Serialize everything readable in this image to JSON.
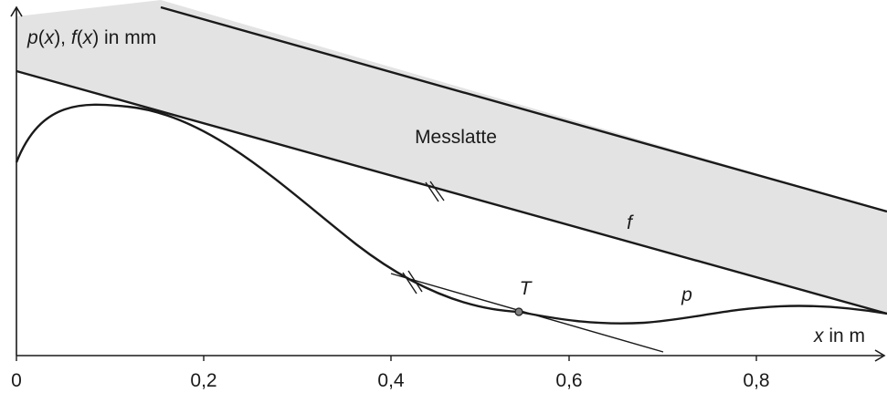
{
  "diagram": {
    "y_axis_label": {
      "parts": [
        "p",
        "(",
        "x",
        "), ",
        "f",
        "(",
        "x",
        ") in mm"
      ],
      "italic": [
        true,
        false,
        true,
        false,
        true,
        false,
        true,
        false
      ]
    },
    "x_axis_label": {
      "parts": [
        "x",
        " in m"
      ],
      "italic": [
        true,
        false
      ]
    },
    "x_ticks": [
      "0",
      "0,2",
      "0,4",
      "0,6",
      "0,8"
    ],
    "band_label": "Messlatte",
    "curve_f_label": "f",
    "curve_p_label": "p",
    "point_label": "T",
    "colors": {
      "band_fill": "#e3e3e3",
      "stroke": "#1a1a1a",
      "point_fill": "#808080"
    }
  }
}
